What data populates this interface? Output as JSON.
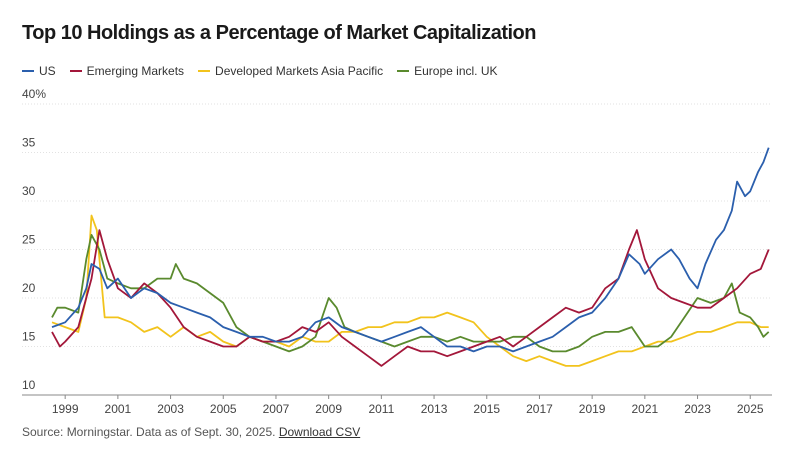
{
  "chart_data": {
    "type": "line",
    "title": "Top 10 Holdings as a Percentage of Market Capitalization",
    "xlabel": "",
    "ylabel": "",
    "ylim": [
      10,
      40
    ],
    "y_ticks": [
      "40%",
      "35",
      "30",
      "25",
      "20",
      "15",
      "10"
    ],
    "y_tick_values": [
      40,
      35,
      30,
      25,
      20,
      15,
      10
    ],
    "xlim": [
      1998.5,
      2025.75
    ],
    "x_ticks": [
      "1999",
      "2001",
      "2003",
      "2005",
      "2007",
      "2009",
      "2011",
      "2013",
      "2015",
      "2017",
      "2019",
      "2021",
      "2023",
      "2025"
    ],
    "x_tick_values": [
      1999,
      2001,
      2003,
      2005,
      2007,
      2009,
      2011,
      2013,
      2015,
      2017,
      2019,
      2021,
      2023,
      2025
    ],
    "legend_position": "top-left",
    "series": [
      {
        "name": "US",
        "color": "#2b5fad",
        "points": [
          [
            1998.5,
            17
          ],
          [
            1999,
            17.5
          ],
          [
            1999.5,
            19
          ],
          [
            1999.8,
            21
          ],
          [
            2000,
            23.5
          ],
          [
            2000.3,
            23
          ],
          [
            2000.6,
            21
          ],
          [
            2001,
            22
          ],
          [
            2001.5,
            20
          ],
          [
            2002,
            21
          ],
          [
            2002.5,
            20.5
          ],
          [
            2003,
            19.5
          ],
          [
            2003.5,
            19
          ],
          [
            2004,
            18.5
          ],
          [
            2004.5,
            18
          ],
          [
            2005,
            17
          ],
          [
            2005.5,
            16.5
          ],
          [
            2006,
            16
          ],
          [
            2006.5,
            16
          ],
          [
            2007,
            15.5
          ],
          [
            2007.5,
            15.5
          ],
          [
            2008,
            16
          ],
          [
            2008.5,
            17.5
          ],
          [
            2009,
            18
          ],
          [
            2009.5,
            17
          ],
          [
            2010,
            16.5
          ],
          [
            2010.5,
            16
          ],
          [
            2011,
            15.5
          ],
          [
            2011.5,
            16
          ],
          [
            2012,
            16.5
          ],
          [
            2012.5,
            17
          ],
          [
            2013,
            16
          ],
          [
            2013.5,
            15
          ],
          [
            2014,
            15
          ],
          [
            2014.5,
            14.5
          ],
          [
            2015,
            15
          ],
          [
            2015.5,
            15
          ],
          [
            2016,
            14.5
          ],
          [
            2016.5,
            15
          ],
          [
            2017,
            15.5
          ],
          [
            2017.5,
            16
          ],
          [
            2018,
            17
          ],
          [
            2018.5,
            18
          ],
          [
            2019,
            18.5
          ],
          [
            2019.5,
            20
          ],
          [
            2020,
            22
          ],
          [
            2020.4,
            24.5
          ],
          [
            2020.8,
            23.5
          ],
          [
            2021,
            22.5
          ],
          [
            2021.5,
            24
          ],
          [
            2022,
            25
          ],
          [
            2022.3,
            24
          ],
          [
            2022.7,
            22
          ],
          [
            2023,
            21
          ],
          [
            2023.3,
            23.5
          ],
          [
            2023.7,
            26
          ],
          [
            2024,
            27
          ],
          [
            2024.3,
            29
          ],
          [
            2024.5,
            32
          ],
          [
            2024.8,
            30.5
          ],
          [
            2025,
            31
          ],
          [
            2025.3,
            33
          ],
          [
            2025.5,
            34
          ],
          [
            2025.7,
            35.5
          ]
        ]
      },
      {
        "name": "Emerging Markets",
        "color": "#a3173a",
        "points": [
          [
            1998.5,
            16.5
          ],
          [
            1998.8,
            15
          ],
          [
            1999,
            15.5
          ],
          [
            1999.5,
            17
          ],
          [
            2000,
            22
          ],
          [
            2000.3,
            27
          ],
          [
            2000.6,
            24
          ],
          [
            2001,
            21
          ],
          [
            2001.5,
            20
          ],
          [
            2002,
            21.5
          ],
          [
            2002.5,
            20.5
          ],
          [
            2003,
            19
          ],
          [
            2003.5,
            17
          ],
          [
            2004,
            16
          ],
          [
            2004.5,
            15.5
          ],
          [
            2005,
            15
          ],
          [
            2005.5,
            15
          ],
          [
            2006,
            16
          ],
          [
            2006.5,
            15.5
          ],
          [
            2007,
            15.5
          ],
          [
            2007.5,
            16
          ],
          [
            2008,
            17
          ],
          [
            2008.5,
            16.5
          ],
          [
            2009,
            17.5
          ],
          [
            2009.5,
            16
          ],
          [
            2010,
            15
          ],
          [
            2010.5,
            14
          ],
          [
            2011,
            13
          ],
          [
            2011.5,
            14
          ],
          [
            2012,
            15
          ],
          [
            2012.5,
            14.5
          ],
          [
            2013,
            14.5
          ],
          [
            2013.5,
            14
          ],
          [
            2014,
            14.5
          ],
          [
            2014.5,
            15
          ],
          [
            2015,
            15.5
          ],
          [
            2015.5,
            16
          ],
          [
            2016,
            15
          ],
          [
            2016.5,
            16
          ],
          [
            2017,
            17
          ],
          [
            2017.5,
            18
          ],
          [
            2018,
            19
          ],
          [
            2018.5,
            18.5
          ],
          [
            2019,
            19
          ],
          [
            2019.5,
            21
          ],
          [
            2020,
            22
          ],
          [
            2020.4,
            25
          ],
          [
            2020.7,
            27
          ],
          [
            2021,
            24
          ],
          [
            2021.5,
            21
          ],
          [
            2022,
            20
          ],
          [
            2022.5,
            19.5
          ],
          [
            2023,
            19
          ],
          [
            2023.5,
            19
          ],
          [
            2024,
            20
          ],
          [
            2024.5,
            21
          ],
          [
            2025,
            22.5
          ],
          [
            2025.4,
            23
          ],
          [
            2025.7,
            25
          ]
        ]
      },
      {
        "name": "Developed Markets Asia Pacific",
        "color": "#f2c31c",
        "points": [
          [
            1998.5,
            17.5
          ],
          [
            1999,
            17
          ],
          [
            1999.5,
            16.5
          ],
          [
            1999.8,
            20
          ],
          [
            2000,
            28.5
          ],
          [
            2000.2,
            27
          ],
          [
            2000.5,
            18
          ],
          [
            2001,
            18
          ],
          [
            2001.5,
            17.5
          ],
          [
            2002,
            16.5
          ],
          [
            2002.5,
            17
          ],
          [
            2003,
            16
          ],
          [
            2003.5,
            17
          ],
          [
            2004,
            16
          ],
          [
            2004.5,
            16.5
          ],
          [
            2005,
            15.5
          ],
          [
            2005.5,
            15
          ],
          [
            2006,
            16
          ],
          [
            2006.5,
            15.5
          ],
          [
            2007,
            15.5
          ],
          [
            2007.5,
            15
          ],
          [
            2008,
            16
          ],
          [
            2008.5,
            15.5
          ],
          [
            2009,
            15.5
          ],
          [
            2009.5,
            16.5
          ],
          [
            2010,
            16.5
          ],
          [
            2010.5,
            17
          ],
          [
            2011,
            17
          ],
          [
            2011.5,
            17.5
          ],
          [
            2012,
            17.5
          ],
          [
            2012.5,
            18
          ],
          [
            2013,
            18
          ],
          [
            2013.5,
            18.5
          ],
          [
            2014,
            18
          ],
          [
            2014.5,
            17.5
          ],
          [
            2015,
            16
          ],
          [
            2015.5,
            15
          ],
          [
            2016,
            14
          ],
          [
            2016.5,
            13.5
          ],
          [
            2017,
            14
          ],
          [
            2017.5,
            13.5
          ],
          [
            2018,
            13
          ],
          [
            2018.5,
            13
          ],
          [
            2019,
            13.5
          ],
          [
            2019.5,
            14
          ],
          [
            2020,
            14.5
          ],
          [
            2020.5,
            14.5
          ],
          [
            2021,
            15
          ],
          [
            2021.5,
            15.5
          ],
          [
            2022,
            15.5
          ],
          [
            2022.5,
            16
          ],
          [
            2023,
            16.5
          ],
          [
            2023.5,
            16.5
          ],
          [
            2024,
            17
          ],
          [
            2024.5,
            17.5
          ],
          [
            2025,
            17.5
          ],
          [
            2025.4,
            17
          ],
          [
            2025.7,
            17
          ]
        ]
      },
      {
        "name": "Europe incl. UK",
        "color": "#5a8a2e",
        "points": [
          [
            1998.5,
            18
          ],
          [
            1998.7,
            19
          ],
          [
            1999,
            19
          ],
          [
            1999.5,
            18.5
          ],
          [
            1999.8,
            24
          ],
          [
            2000,
            26.5
          ],
          [
            2000.3,
            25
          ],
          [
            2000.6,
            22
          ],
          [
            2001,
            21.5
          ],
          [
            2001.5,
            21
          ],
          [
            2002,
            21
          ],
          [
            2002.5,
            22
          ],
          [
            2003,
            22
          ],
          [
            2003.2,
            23.5
          ],
          [
            2003.5,
            22
          ],
          [
            2004,
            21.5
          ],
          [
            2004.5,
            20.5
          ],
          [
            2005,
            19.5
          ],
          [
            2005.5,
            17
          ],
          [
            2006,
            16
          ],
          [
            2006.5,
            15.5
          ],
          [
            2007,
            15
          ],
          [
            2007.5,
            14.5
          ],
          [
            2008,
            15
          ],
          [
            2008.5,
            16
          ],
          [
            2009,
            20
          ],
          [
            2009.3,
            19
          ],
          [
            2009.6,
            17
          ],
          [
            2010,
            16.5
          ],
          [
            2010.5,
            16
          ],
          [
            2011,
            15.5
          ],
          [
            2011.5,
            15
          ],
          [
            2012,
            15.5
          ],
          [
            2012.5,
            16
          ],
          [
            2013,
            16
          ],
          [
            2013.5,
            15.5
          ],
          [
            2014,
            16
          ],
          [
            2014.5,
            15.5
          ],
          [
            2015,
            15.5
          ],
          [
            2015.5,
            15.5
          ],
          [
            2016,
            16
          ],
          [
            2016.5,
            16
          ],
          [
            2017,
            15
          ],
          [
            2017.5,
            14.5
          ],
          [
            2018,
            14.5
          ],
          [
            2018.5,
            15
          ],
          [
            2019,
            16
          ],
          [
            2019.5,
            16.5
          ],
          [
            2020,
            16.5
          ],
          [
            2020.5,
            17
          ],
          [
            2021,
            15
          ],
          [
            2021.5,
            15
          ],
          [
            2022,
            16
          ],
          [
            2022.5,
            18
          ],
          [
            2023,
            20
          ],
          [
            2023.5,
            19.5
          ],
          [
            2024,
            20
          ],
          [
            2024.3,
            21.5
          ],
          [
            2024.6,
            18.5
          ],
          [
            2025,
            18
          ],
          [
            2025.3,
            17
          ],
          [
            2025.5,
            16
          ],
          [
            2025.7,
            16.5
          ]
        ]
      }
    ]
  },
  "footer": {
    "source": "Source: Morningstar. Data as of Sept. 30, 2025.",
    "link_label": "Download CSV"
  }
}
